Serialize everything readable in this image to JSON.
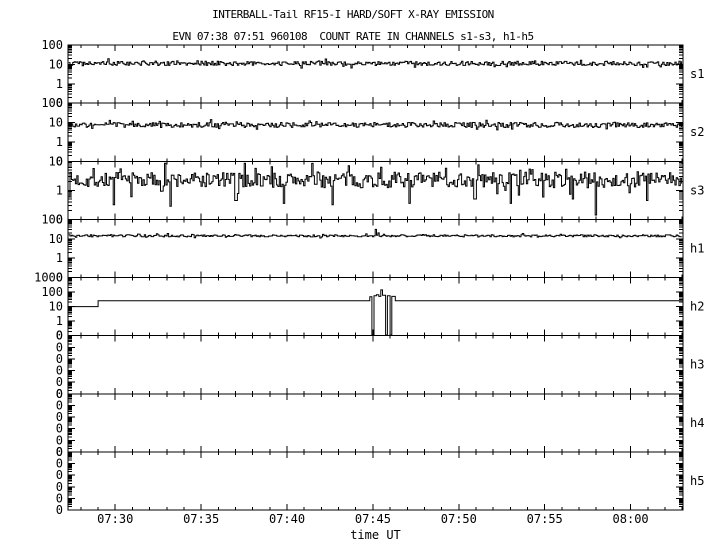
{
  "colors": {
    "foreground": "#000000",
    "background": "#ffffff"
  },
  "chart_data": {
    "type": "line",
    "title": "INTERBALL-Tail RF15-I HARD/SOFT X-RAY EMISSION",
    "subtitle": "EVN 07:38 07:51 960108  COUNT RATE IN CHANNELS s1-s3, h1-h5",
    "xlabel": "time UT",
    "legend": "none",
    "grid": false,
    "x_axis": {
      "range_minutes_ut": [
        447.25,
        483.05
      ],
      "minor_tick_step_min": 1,
      "major_ticks": [
        {
          "t": 450,
          "label": "07:30"
        },
        {
          "t": 455,
          "label": "07:35"
        },
        {
          "t": 460,
          "label": "07:40"
        },
        {
          "t": 465,
          "label": "07:45"
        },
        {
          "t": 470,
          "label": "07:50"
        },
        {
          "t": 475,
          "label": "07:55"
        },
        {
          "t": 480,
          "label": "08:00"
        }
      ]
    },
    "panels": [
      {
        "channel": "s1",
        "scale": "log",
        "top_log": 2,
        "decades": 3,
        "y_tick_labels": [
          "100",
          "10",
          "1",
          "0"
        ],
        "series": {
          "kind": "noisy",
          "seed": 5,
          "baseline_log": 1.05,
          "noise_log": 0.11,
          "spike_prob": 0.07,
          "features": []
        }
      },
      {
        "channel": "s2",
        "scale": "log",
        "top_log": 2,
        "decades": 3,
        "y_tick_labels": [
          "100",
          "10",
          "1",
          "0"
        ],
        "series": {
          "kind": "noisy",
          "seed": 9,
          "baseline_log": 0.87,
          "noise_log": 0.13,
          "spike_prob": 0.08,
          "features": []
        }
      },
      {
        "channel": "s3",
        "scale": "log",
        "top_log": 1,
        "decades": 2,
        "y_tick_labels": [
          "10",
          "1",
          "0"
        ],
        "series": {
          "kind": "noisy",
          "seed": 7,
          "baseline_log": 0.36,
          "noise_log": 0.27,
          "spike_prob": 0.12,
          "features": [
            {
              "t": 449.9,
              "log": -0.5
            },
            {
              "t": 453.2,
              "log": -0.55
            },
            {
              "t": 457.0,
              "log": -0.35
            },
            {
              "t": 459.8,
              "log": -0.45
            },
            {
              "t": 462.6,
              "log": -0.5
            },
            {
              "t": 467.1,
              "log": -0.45
            },
            {
              "t": 470.9,
              "log": -0.3
            },
            {
              "t": 473.0,
              "log": -0.45
            },
            {
              "t": 476.6,
              "log": -0.3
            },
            {
              "t": 477.95,
              "log": -0.85
            },
            {
              "t": 480.9,
              "log": -0.35
            }
          ]
        }
      },
      {
        "channel": "h1",
        "scale": "log",
        "top_log": 2,
        "decades": 3,
        "y_tick_labels": [
          "100",
          "10",
          "1",
          "0"
        ],
        "series": {
          "kind": "noisy",
          "seed": 3,
          "baseline_log": 1.15,
          "noise_log": 0.055,
          "spike_prob": 0.1,
          "features": [
            {
              "t": 465.12,
              "log": 1.48
            },
            {
              "t": 465.3,
              "log": 1.3
            }
          ]
        }
      },
      {
        "channel": "h2",
        "scale": "log",
        "top_log": 3,
        "decades": 4,
        "y_tick_labels": [
          "1000",
          "100",
          "10",
          "1",
          "0"
        ],
        "series": {
          "kind": "segments",
          "segments": [
            [
              447.25,
              449.0,
              10
            ],
            [
              449.0,
              464.82,
              25
            ],
            [
              464.82,
              464.94,
              48
            ],
            [
              464.94,
              465.06,
              0.1
            ],
            [
              465.06,
              465.2,
              55
            ],
            [
              465.2,
              465.34,
              65
            ],
            [
              465.34,
              465.46,
              50
            ],
            [
              465.46,
              465.56,
              140
            ],
            [
              465.56,
              465.74,
              60
            ],
            [
              465.74,
              465.84,
              0.1
            ],
            [
              465.84,
              466.0,
              55
            ],
            [
              466.0,
              466.1,
              0.1
            ],
            [
              466.1,
              466.3,
              50
            ],
            [
              466.3,
              483.05,
              25
            ]
          ]
        }
      },
      {
        "channel": "h3",
        "scale": "log",
        "top_log": 0,
        "decades": 5,
        "y_tick_labels": [
          "0",
          "0",
          "0",
          "0",
          "0",
          "0"
        ],
        "series": {
          "kind": "none"
        }
      },
      {
        "channel": "h4",
        "scale": "log",
        "top_log": 0,
        "decades": 5,
        "y_tick_labels": [
          "0",
          "0",
          "0",
          "0",
          "0",
          "0"
        ],
        "series": {
          "kind": "none"
        }
      },
      {
        "channel": "h5",
        "scale": "log",
        "top_log": 0,
        "decades": 5,
        "y_tick_labels": [
          "0",
          "0",
          "0",
          "0",
          "0",
          "0"
        ],
        "series": {
          "kind": "none"
        }
      }
    ]
  }
}
